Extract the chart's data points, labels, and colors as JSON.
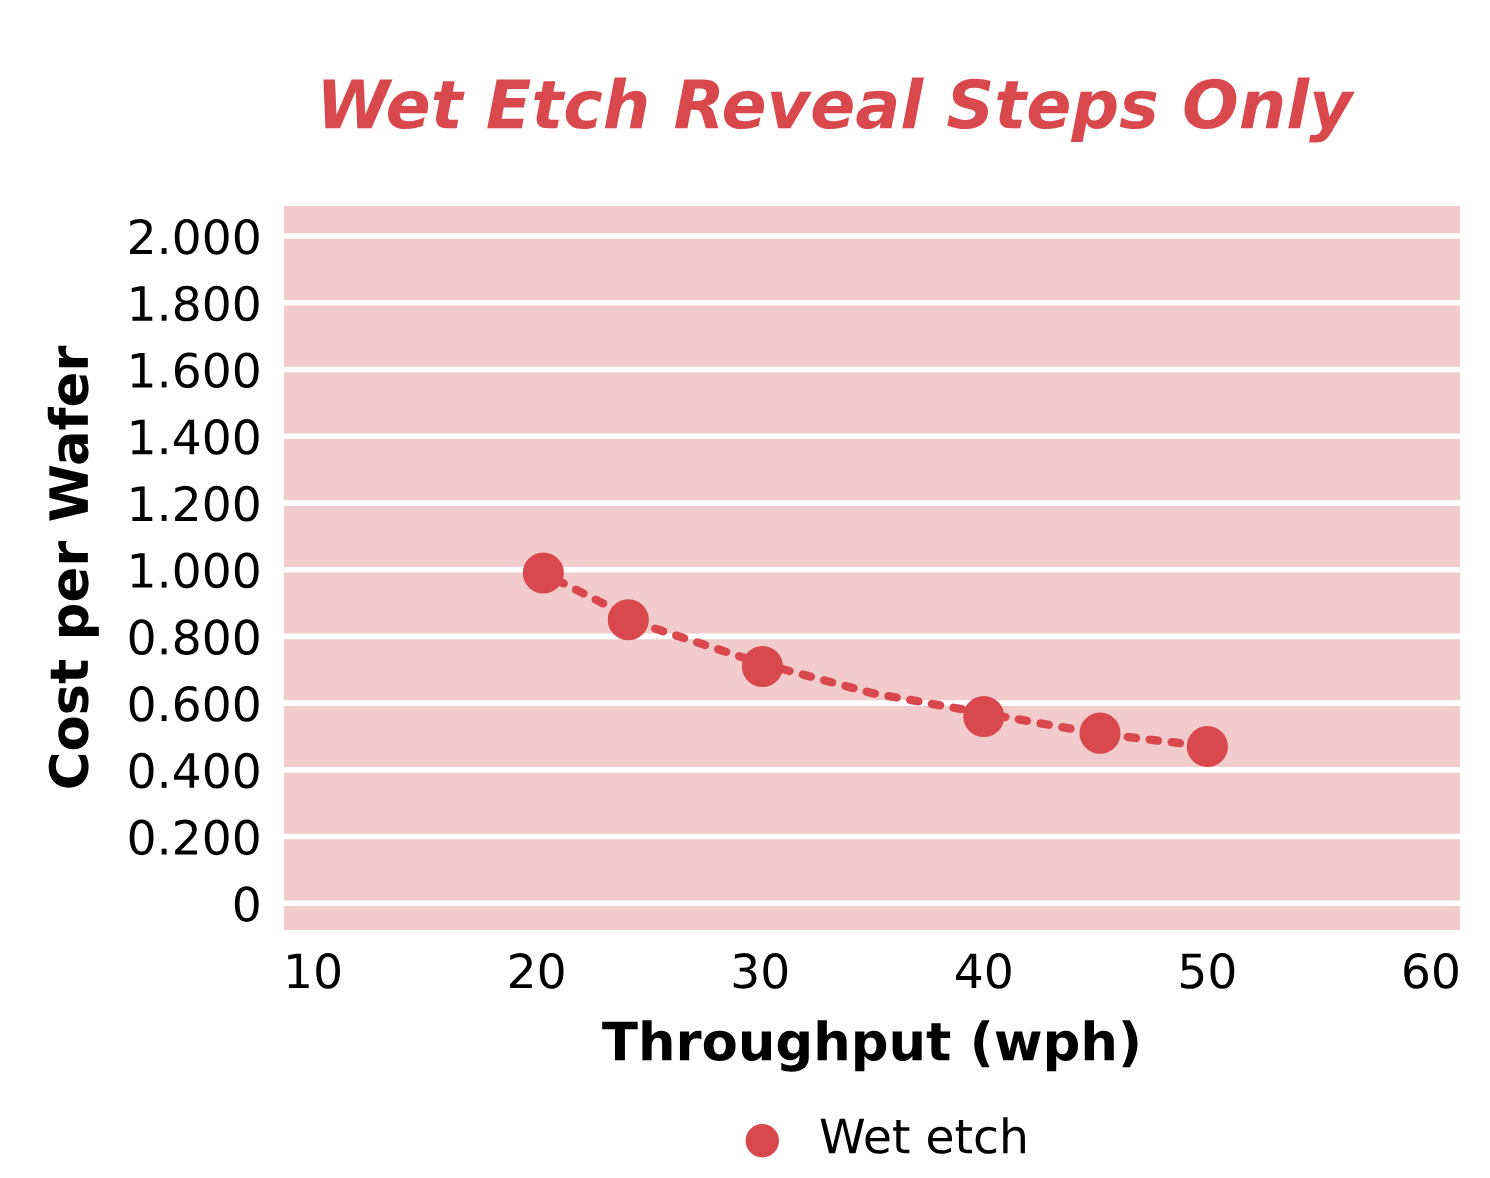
{
  "chart_data": {
    "type": "scatter",
    "title": "Wet Etch Reveal Steps Only",
    "xlabel": "Throughput (wph)",
    "ylabel": "Cost per Wafer",
    "series": [
      {
        "name": "Wet etch",
        "color": "#d9484d",
        "x": [
          20.3,
          24.1,
          30.1,
          40,
          45.2,
          50
        ],
        "values": [
          0.99,
          0.85,
          0.71,
          0.56,
          0.51,
          0.47
        ],
        "marker": "circle"
      },
      {
        "type": "line",
        "color": "#d9484d",
        "x": [
          20,
          25,
          30,
          35,
          40,
          45,
          50
        ],
        "values": [
          1.0,
          0.83,
          0.72,
          0.63,
          0.57,
          0.51,
          0.47
        ],
        "line_style": "dotted",
        "marker": "none"
      }
    ],
    "xlim": [
      8.7,
      61.3
    ],
    "xticks": [
      10,
      20,
      30,
      40,
      50,
      60
    ],
    "ylim": [
      -0.08,
      2.09
    ],
    "yticks": [
      {
        "value": 0,
        "label": "0"
      },
      {
        "value": 0.2,
        "label": "0.200"
      },
      {
        "value": 0.4,
        "label": "0.400"
      },
      {
        "value": 0.6,
        "label": "0.600"
      },
      {
        "value": 0.8,
        "label": "0.800"
      },
      {
        "value": 1.0,
        "label": "1.000"
      },
      {
        "value": 1.2,
        "label": "1.200"
      },
      {
        "value": 1.4,
        "label": "1.400"
      },
      {
        "value": 1.6,
        "label": "1.600"
      },
      {
        "value": 1.8,
        "label": "1.800"
      },
      {
        "value": 2.0,
        "label": "2.000"
      }
    ],
    "grid": "y",
    "legend": "bottom"
  }
}
